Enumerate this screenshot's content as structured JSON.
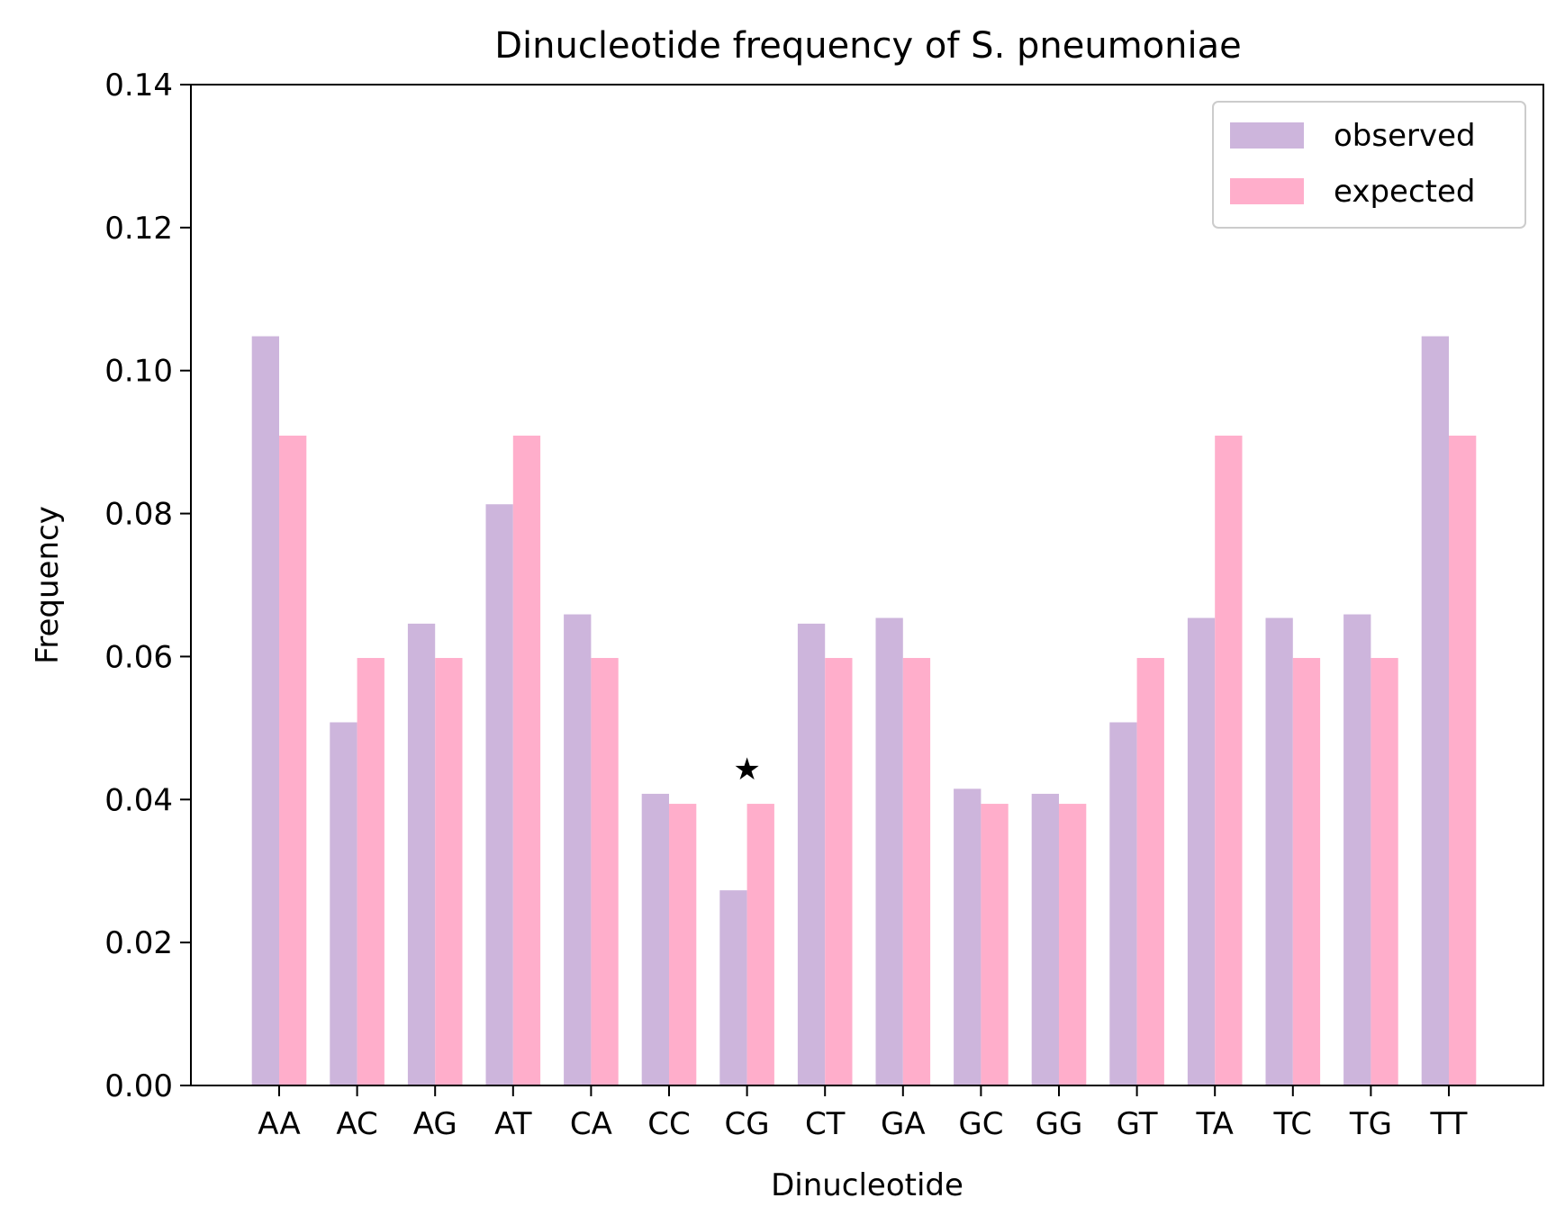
{
  "chart_data": {
    "type": "bar",
    "title": "Dinucleotide frequency of S. pneumoniae",
    "xlabel": "Dinucleotide",
    "ylabel": "Frequency",
    "ylim": [
      0,
      0.14
    ],
    "yticks": [
      0.0,
      0.02,
      0.04,
      0.06,
      0.08,
      0.1,
      0.12,
      0.14
    ],
    "ytick_labels": [
      "0.00",
      "0.02",
      "0.04",
      "0.06",
      "0.08",
      "0.10",
      "0.12",
      "0.14"
    ],
    "categories": [
      "AA",
      "AC",
      "AG",
      "AT",
      "CA",
      "CC",
      "CG",
      "CT",
      "GA",
      "GC",
      "GG",
      "GT",
      "TA",
      "TC",
      "TG",
      "TT"
    ],
    "series": [
      {
        "name": "observed",
        "color": "#cdb5dc",
        "values": [
          0.1048,
          0.0508,
          0.0646,
          0.0813,
          0.0659,
          0.0408,
          0.0273,
          0.0646,
          0.0654,
          0.0415,
          0.0408,
          0.0508,
          0.0654,
          0.0654,
          0.0659,
          0.1048
        ]
      },
      {
        "name": "expected",
        "color": "#ffaecb",
        "values": [
          0.0909,
          0.0598,
          0.0598,
          0.0909,
          0.0598,
          0.0394,
          0.0394,
          0.0598,
          0.0598,
          0.0394,
          0.0394,
          0.0598,
          0.0909,
          0.0598,
          0.0598,
          0.0909
        ]
      }
    ],
    "annotations": [
      {
        "text": "★",
        "category": "CG",
        "y": 0.0443
      }
    ],
    "legend": {
      "position": "top-right"
    },
    "grid": false
  }
}
